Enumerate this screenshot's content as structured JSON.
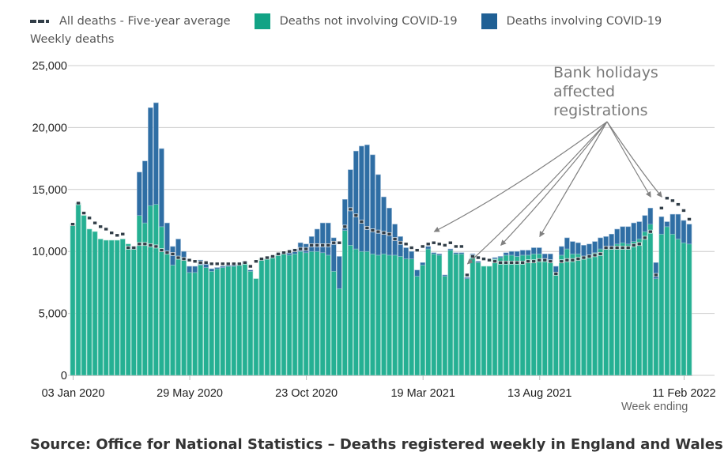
{
  "chart_data": {
    "type": "bar",
    "stacked": true,
    "title": "",
    "ylabel": "Weekly deaths",
    "xlabel": "Week ending",
    "ylim": [
      0,
      25000
    ],
    "yticks": [
      0,
      5000,
      10000,
      15000,
      20000,
      25000
    ],
    "ytick_labels": [
      "0",
      "5,000",
      "10,000",
      "15,000",
      "20,000",
      "25,000"
    ],
    "grid": true,
    "x_ticks": [
      {
        "index": 0,
        "label": "03 Jan 2020"
      },
      {
        "index": 21,
        "label": "29 May 2020"
      },
      {
        "index": 42,
        "label": "23 Oct 2020"
      },
      {
        "index": 63,
        "label": "19 Mar 2021"
      },
      {
        "index": 84,
        "label": "13 Aug 2021"
      },
      {
        "index": 110,
        "label": "11 Feb 2022"
      }
    ],
    "legend": {
      "position": "top-left",
      "entries": [
        {
          "label": "All deaths - Five-year average",
          "type": "dash",
          "color": "#323e48"
        },
        {
          "label": "Deaths not involving COVID-19",
          "type": "box",
          "color": "#12a385"
        },
        {
          "label": "Deaths involving COVID-19",
          "type": "box",
          "color": "#206095"
        }
      ]
    },
    "colors": {
      "non_covid": "#25b093",
      "covid": "#2f6ea4",
      "average": "#323e48",
      "grid": "#cccccc",
      "annotation": "#808080"
    },
    "series": [
      {
        "name": "Deaths not involving COVID-19",
        "values": [
          12200,
          13900,
          12900,
          11800,
          11600,
          11000,
          10900,
          10900,
          10900,
          11000,
          10600,
          10200,
          12900,
          12300,
          13700,
          13800,
          12000,
          9800,
          8900,
          9600,
          9300,
          8300,
          8300,
          8900,
          8700,
          8400,
          8600,
          8700,
          8800,
          8800,
          8900,
          9100,
          8400,
          7800,
          9400,
          9400,
          9500,
          9700,
          9800,
          9700,
          9800,
          10000,
          9900,
          10000,
          10000,
          9900,
          9700,
          8400,
          7000,
          11700,
          10500,
          10200,
          10000,
          10000,
          9800,
          9700,
          9800,
          9700,
          9700,
          9600,
          9400,
          9400,
          8000,
          8900,
          10200,
          9800,
          9700,
          8000,
          10100,
          9800,
          9800,
          7800,
          9700,
          9100,
          8800,
          8800,
          9400,
          9500,
          9700,
          9700,
          9600,
          9700,
          9700,
          9800,
          9800,
          9300,
          9200,
          8200,
          9700,
          10200,
          9800,
          9800,
          9600,
          9700,
          9900,
          10200,
          10200,
          10300,
          10600,
          10700,
          10600,
          10800,
          11000,
          11600,
          12200,
          7800,
          11400,
          12000,
          11400,
          11000,
          10700,
          10600
        ],
        "_note": "estimated from bar heights"
      },
      {
        "name": "Deaths involving COVID-19",
        "values": [
          0,
          0,
          0,
          0,
          0,
          0,
          0,
          0,
          0,
          0,
          0,
          200,
          3500,
          5000,
          7900,
          8200,
          6300,
          2500,
          1500,
          1400,
          700,
          500,
          500,
          400,
          300,
          200,
          100,
          100,
          100,
          100,
          100,
          100,
          100,
          0,
          0,
          0,
          100,
          100,
          100,
          200,
          400,
          700,
          700,
          1200,
          1800,
          2400,
          2600,
          2700,
          2600,
          2500,
          6100,
          7900,
          8500,
          8600,
          8000,
          6500,
          4600,
          3800,
          2500,
          1600,
          900,
          600,
          500,
          200,
          200,
          100,
          100,
          100,
          100,
          100,
          100,
          100,
          100,
          100,
          0,
          0,
          100,
          100,
          200,
          300,
          400,
          400,
          400,
          500,
          500,
          500,
          600,
          600,
          700,
          900,
          1000,
          900,
          900,
          900,
          900,
          900,
          1000,
          1100,
          1200,
          1300,
          1400,
          1500,
          1400,
          1300,
          1300,
          1300,
          1400,
          400,
          1600,
          2000,
          1800,
          1600,
          1600,
          1500
        ]
      },
      {
        "name": "All deaths - Five-year average",
        "values": [
          12200,
          13900,
          13100,
          12700,
          12300,
          12000,
          11800,
          11500,
          11300,
          11400,
          10300,
          10300,
          10600,
          10600,
          10500,
          10400,
          10100,
          9900,
          9800,
          9500,
          9400,
          9300,
          9200,
          9100,
          9100,
          9000,
          9000,
          9000,
          9000,
          9000,
          9000,
          9100,
          8800,
          9200,
          9400,
          9500,
          9600,
          9800,
          9900,
          10000,
          10100,
          10200,
          10200,
          10500,
          10500,
          10500,
          10500,
          10700,
          10700,
          12000,
          13400,
          12900,
          12400,
          11900,
          11700,
          11600,
          11500,
          11400,
          11000,
          10700,
          10600,
          10300,
          10100,
          10400,
          10600,
          10700,
          10600,
          10500,
          10700,
          10400,
          10400,
          8100,
          9600,
          9500,
          9400,
          9300,
          9200,
          9100,
          9100,
          9100,
          9100,
          9100,
          9200,
          9200,
          9300,
          9300,
          9200,
          8200,
          9200,
          9300,
          9300,
          9400,
          9500,
          9600,
          9700,
          9800,
          10300,
          10300,
          10300,
          10300,
          10300,
          10500,
          10600,
          11100,
          11600,
          8100,
          13500,
          14300,
          14100,
          13800,
          13300,
          12600
        ]
      }
    ],
    "annotation": {
      "text_lines": [
        "Bank holidays",
        "affected",
        "registrations"
      ],
      "target_indices": [
        65,
        71,
        77,
        84,
        104,
        106
      ]
    }
  },
  "axis": {
    "ylabel": "Weekly deaths",
    "xlabel": "Week ending"
  },
  "source": "Source: Office for National Statistics – Deaths registered weekly in England and Wales"
}
